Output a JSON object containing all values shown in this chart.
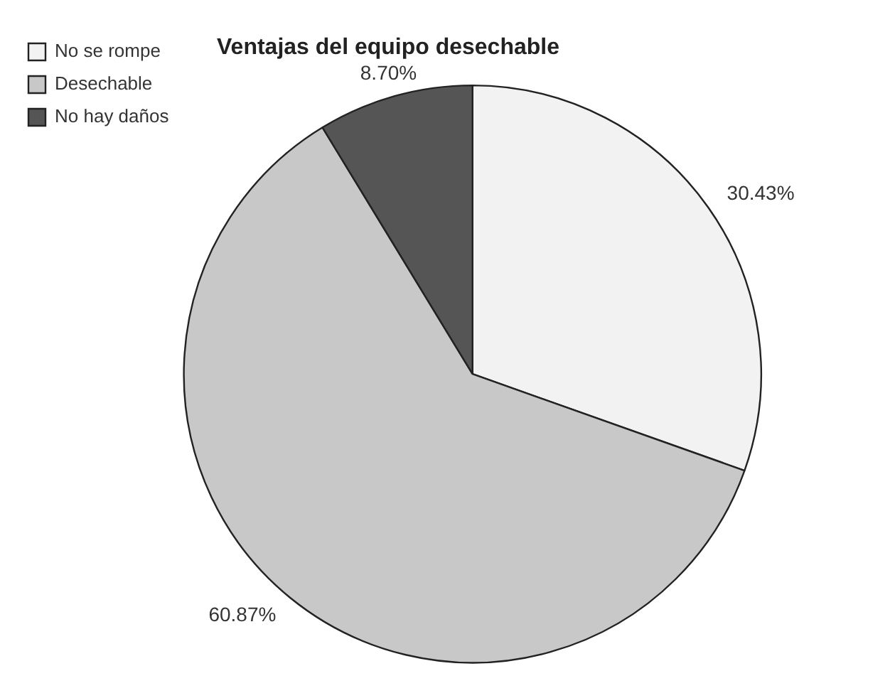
{
  "chart_data": {
    "type": "pie",
    "title": "Ventajas del equipo desechable",
    "categories": [
      "No se rompe",
      "Desechable",
      "No hay daños"
    ],
    "values": [
      30.43,
      60.87,
      8.7
    ],
    "value_labels": [
      "30.43%",
      "60.87%",
      "8.70%"
    ],
    "colors": [
      "#f2f2f2",
      "#c8c8c8",
      "#555555"
    ],
    "legend": "top left"
  }
}
